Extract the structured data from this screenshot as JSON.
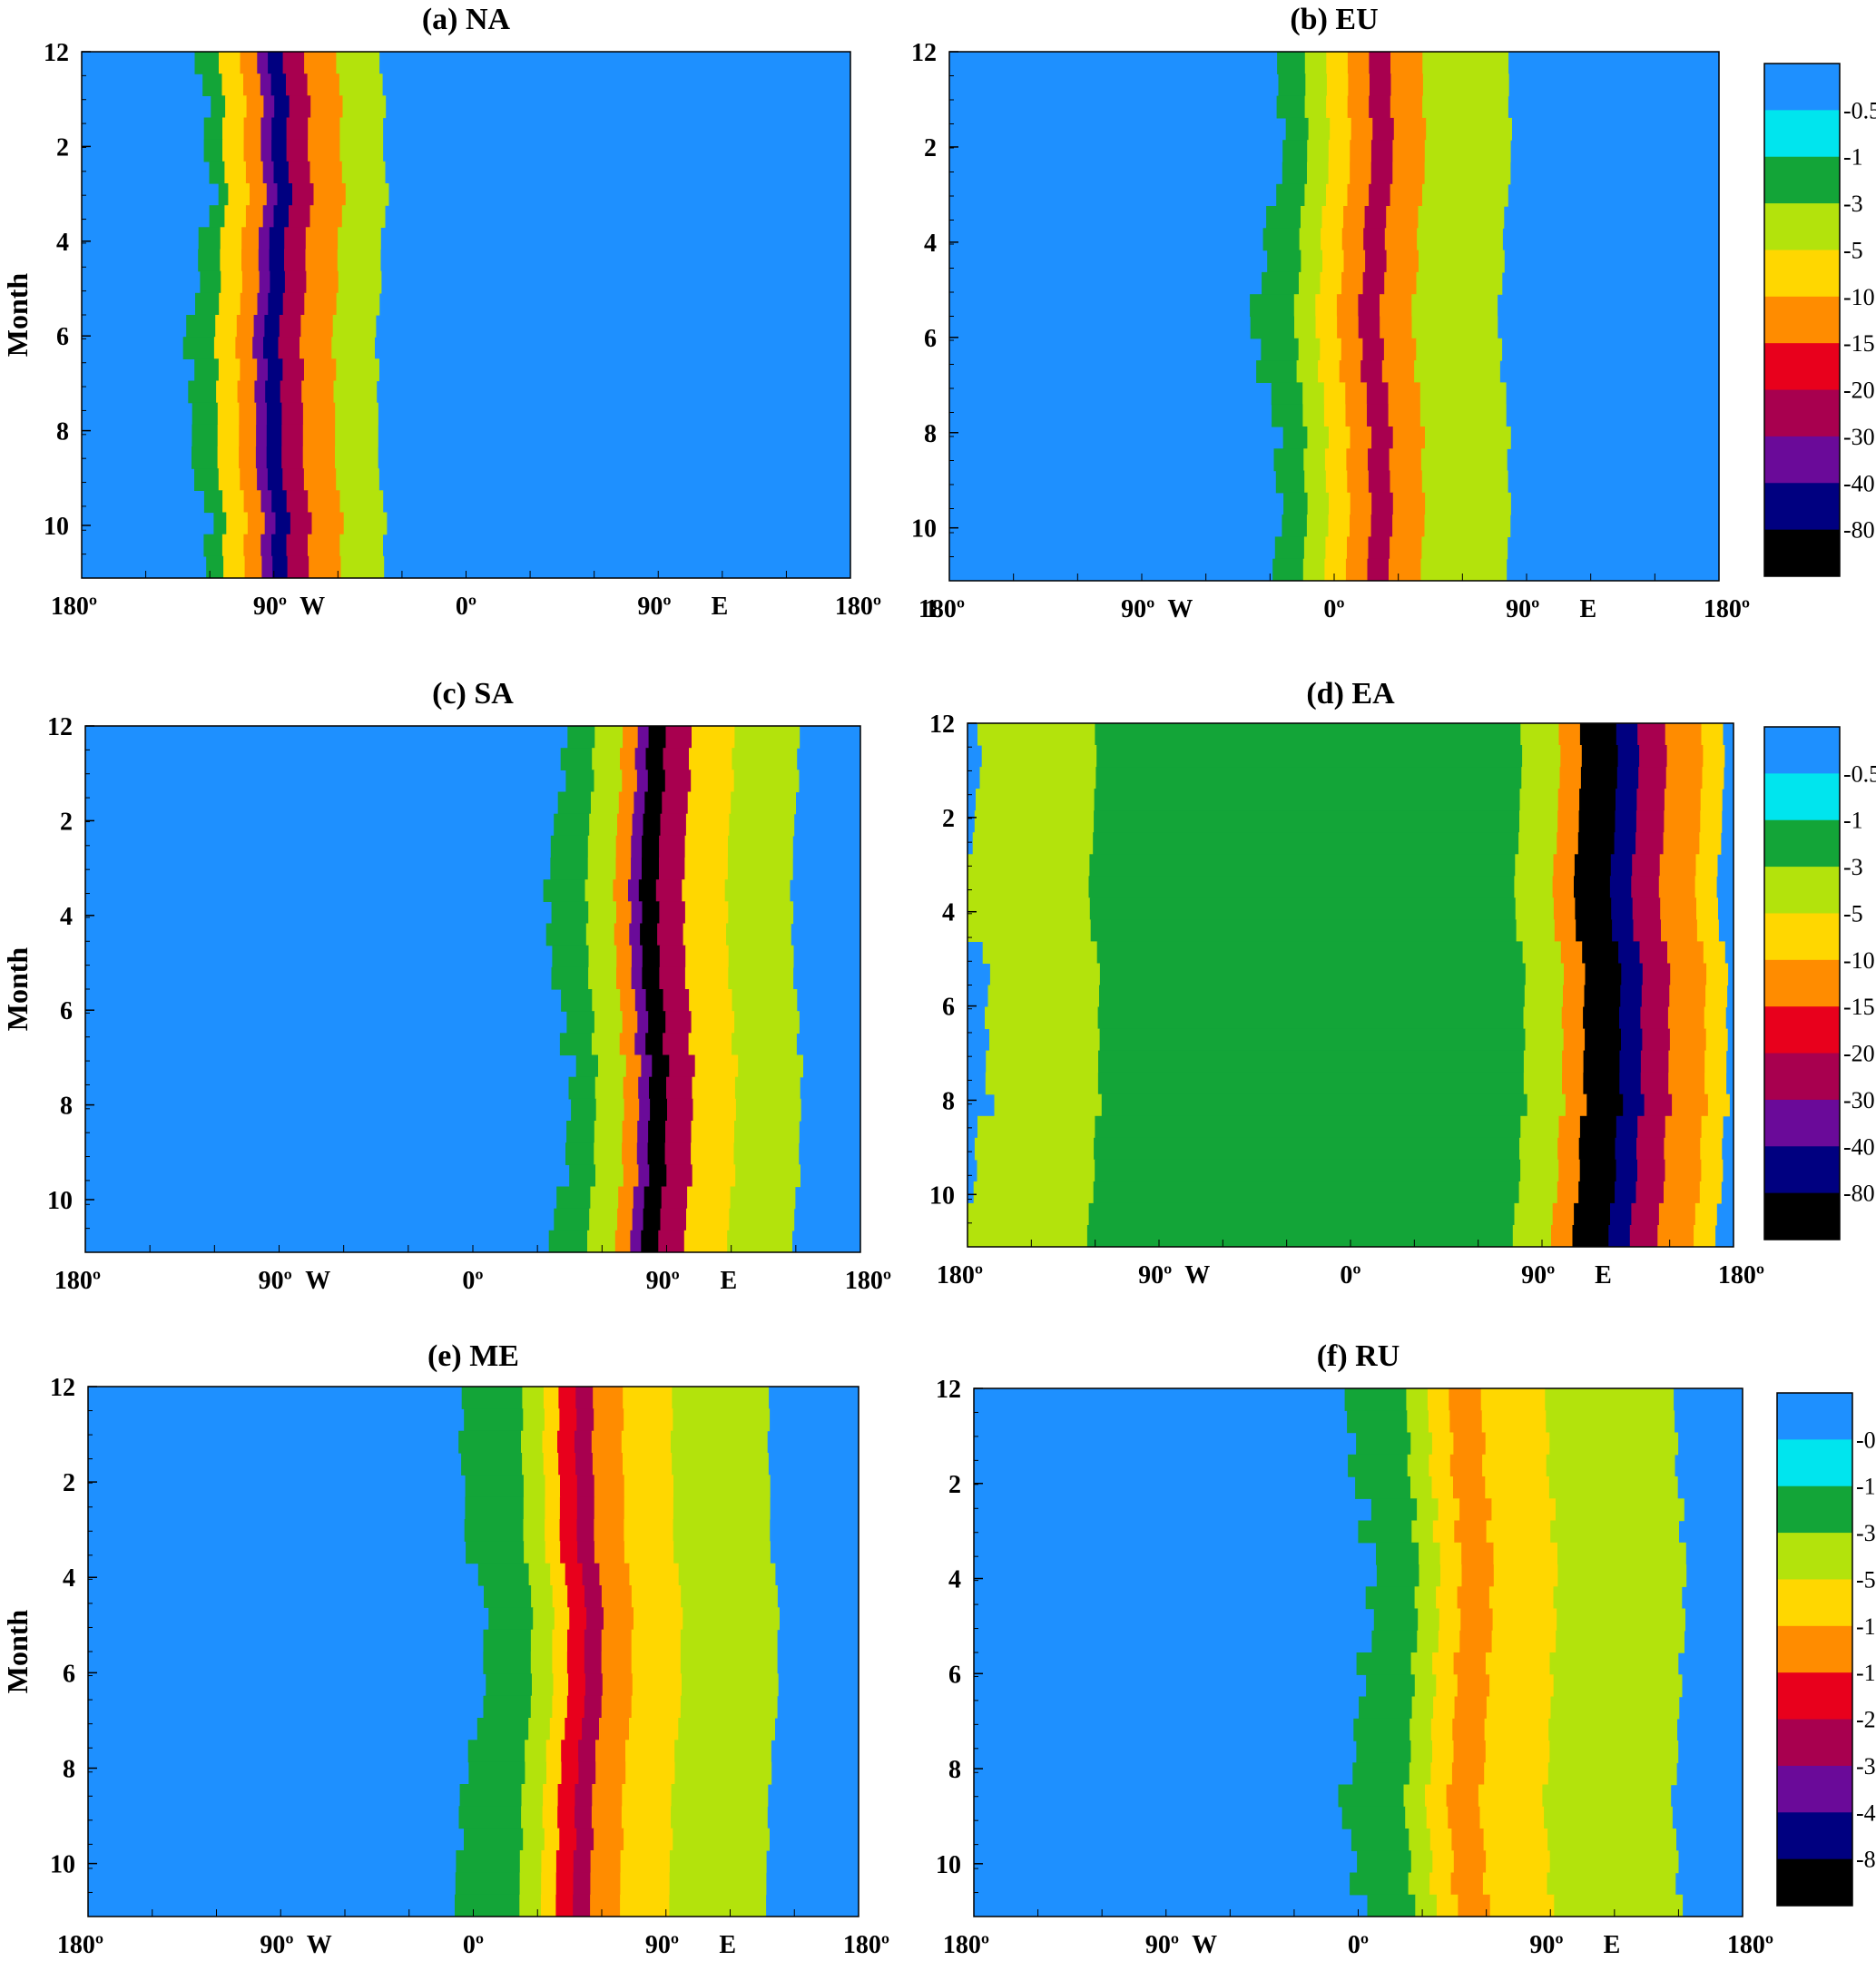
{
  "figure": {
    "months_ticks": [
      "12",
      "2",
      "4",
      "6",
      "8",
      "10"
    ],
    "lon_ticks": [
      "180º",
      "90º",
      "W",
      "0º",
      "90º",
      "E",
      "180º"
    ],
    "stray_label_b": "1",
    "ylabel": "Month"
  },
  "colorbar": {
    "levels": [
      "-0.5",
      "-1",
      "-3",
      "-5",
      "-10",
      "-15",
      "-20",
      "-30",
      "-40",
      "-80"
    ],
    "colors": [
      "#1e90ff",
      "#00e5ee",
      "#13a538",
      "#b3e30c",
      "#ffd700",
      "#ff8c00",
      "#e8001c",
      "#a8004f",
      "#6a0a99",
      "#000080",
      "#000000"
    ]
  },
  "chart_data": [
    {
      "type": "heatmap",
      "title": "(a) NA",
      "xlabel": "",
      "ylabel": "Month",
      "xlim": [
        -180,
        180
      ],
      "y_ticks": [
        12,
        2,
        4,
        6,
        8,
        10
      ],
      "core_longitude": -95,
      "band_profile_by_longitude": [
        {
          "lon": -125,
          "class": "-1"
        },
        {
          "lon": -115,
          "class": "-5"
        },
        {
          "lon": -105,
          "class": "-10"
        },
        {
          "lon": -97,
          "class": "-30"
        },
        {
          "lon": -92,
          "class": "-40"
        },
        {
          "lon": -85,
          "class": "-20"
        },
        {
          "lon": -75,
          "class": "-10"
        },
        {
          "lon": -60,
          "class": "-3"
        },
        {
          "lon": -40,
          "class": "-1"
        }
      ]
    },
    {
      "type": "heatmap",
      "title": "(b) EU",
      "xlabel": "",
      "ylabel": "",
      "xlim": [
        -180,
        180
      ],
      "y_ticks": [
        12,
        2,
        4,
        6,
        8,
        10
      ],
      "core_longitude": 15,
      "band_profile_by_longitude": [
        {
          "lon": -30,
          "class": "-1"
        },
        {
          "lon": -15,
          "class": "-3"
        },
        {
          "lon": -5,
          "class": "-5"
        },
        {
          "lon": 5,
          "class": "-10"
        },
        {
          "lon": 15,
          "class": "-20"
        },
        {
          "lon": 25,
          "class": "-10"
        },
        {
          "lon": 40,
          "class": "-3"
        },
        {
          "lon": 80,
          "class": "-1"
        }
      ]
    },
    {
      "type": "heatmap",
      "title": "(c) SA",
      "xlabel": "",
      "ylabel": "Month",
      "xlim": [
        -180,
        180
      ],
      "y_ticks": [
        12,
        2,
        4,
        6,
        8,
        10
      ],
      "core_longitude": 80,
      "band_profile_by_longitude": [
        {
          "lon": 40,
          "class": "-1"
        },
        {
          "lon": 55,
          "class": "-3"
        },
        {
          "lon": 68,
          "class": "-10"
        },
        {
          "lon": 75,
          "class": "-30"
        },
        {
          "lon": 80,
          "class": "-80"
        },
        {
          "lon": 88,
          "class": "-20"
        },
        {
          "lon": 100,
          "class": "-5"
        },
        {
          "lon": 120,
          "class": "-3"
        },
        {
          "lon": 150,
          "class": "-1"
        }
      ]
    },
    {
      "type": "heatmap",
      "title": "(d) EA",
      "xlabel": "",
      "ylabel": "",
      "xlim": [
        -180,
        180
      ],
      "y_ticks": [
        12,
        2,
        4,
        6,
        8,
        10
      ],
      "core_longitude": 115,
      "band_profile_by_longitude": [
        {
          "lon": -175,
          "class": "-3"
        },
        {
          "lon": -120,
          "class": "-1"
        },
        {
          "lon": 80,
          "class": "-3"
        },
        {
          "lon": 98,
          "class": "-10"
        },
        {
          "lon": 108,
          "class": "-80"
        },
        {
          "lon": 125,
          "class": "-40"
        },
        {
          "lon": 135,
          "class": "-20"
        },
        {
          "lon": 148,
          "class": "-10"
        },
        {
          "lon": 165,
          "class": "-5"
        },
        {
          "lon": 175,
          "class": "-3"
        }
      ]
    },
    {
      "type": "heatmap",
      "title": "(e) ME",
      "xlabel": "",
      "ylabel": "Month",
      "xlim": [
        -180,
        180
      ],
      "y_ticks": [
        12,
        2,
        4,
        6,
        8,
        10
      ],
      "core_longitude": 50,
      "band_profile_by_longitude": [
        {
          "lon": 0,
          "class": "-1"
        },
        {
          "lon": 25,
          "class": "-3"
        },
        {
          "lon": 35,
          "class": "-5"
        },
        {
          "lon": 42,
          "class": "-15"
        },
        {
          "lon": 50,
          "class": "-20"
        },
        {
          "lon": 58,
          "class": "-10"
        },
        {
          "lon": 72,
          "class": "-5"
        },
        {
          "lon": 95,
          "class": "-3"
        },
        {
          "lon": 140,
          "class": "-1"
        }
      ]
    },
    {
      "type": "heatmap",
      "title": "(f) RU",
      "xlabel": "",
      "ylabel": "",
      "xlim": [
        -180,
        180
      ],
      "y_ticks": [
        12,
        2,
        4,
        6,
        8,
        10
      ],
      "core_longitude": 40,
      "band_profile_by_longitude": [
        {
          "lon": 0,
          "class": "-1"
        },
        {
          "lon": 25,
          "class": "-3"
        },
        {
          "lon": 35,
          "class": "-5"
        },
        {
          "lon": 45,
          "class": "-10"
        },
        {
          "lon": 60,
          "class": "-5"
        },
        {
          "lon": 90,
          "class": "-3"
        },
        {
          "lon": 150,
          "class": "-1"
        }
      ]
    }
  ]
}
